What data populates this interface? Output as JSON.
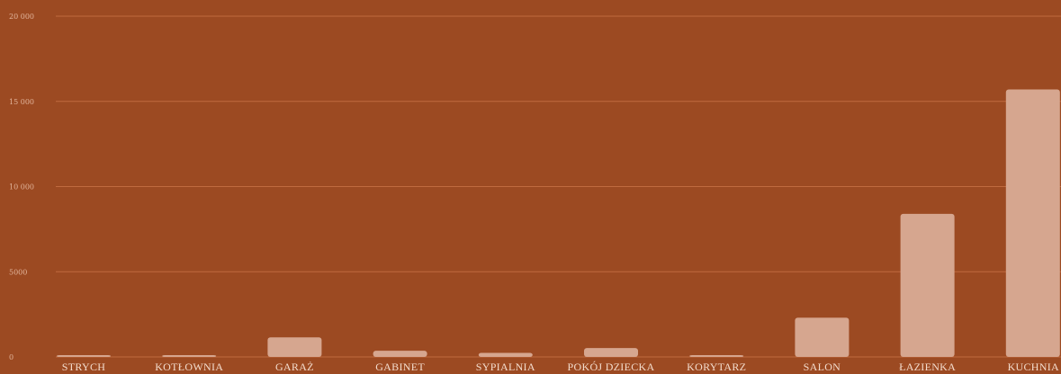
{
  "chart_data": {
    "type": "bar",
    "categories": [
      "STRYCH",
      "KOTŁOWNIA",
      "GARAŻ",
      "GABINET",
      "SYPIALNIA",
      "POKÓJ DZIECKA",
      "KORYTARZ",
      "SALON",
      "ŁAZIENKA",
      "KUCHNIA"
    ],
    "values": [
      40,
      40,
      1150,
      360,
      240,
      520,
      60,
      2300,
      8400,
      15700
    ],
    "ylim": [
      0,
      20000
    ],
    "yticks": [
      0,
      5000,
      10000,
      15000,
      20000
    ],
    "ytick_labels": [
      "0",
      "5000",
      "10 000",
      "15 000",
      "20 000"
    ],
    "grid": true,
    "colors": {
      "background": "#9c4a22",
      "bar": "#d6a68f",
      "grid": "#c06a3f"
    }
  }
}
